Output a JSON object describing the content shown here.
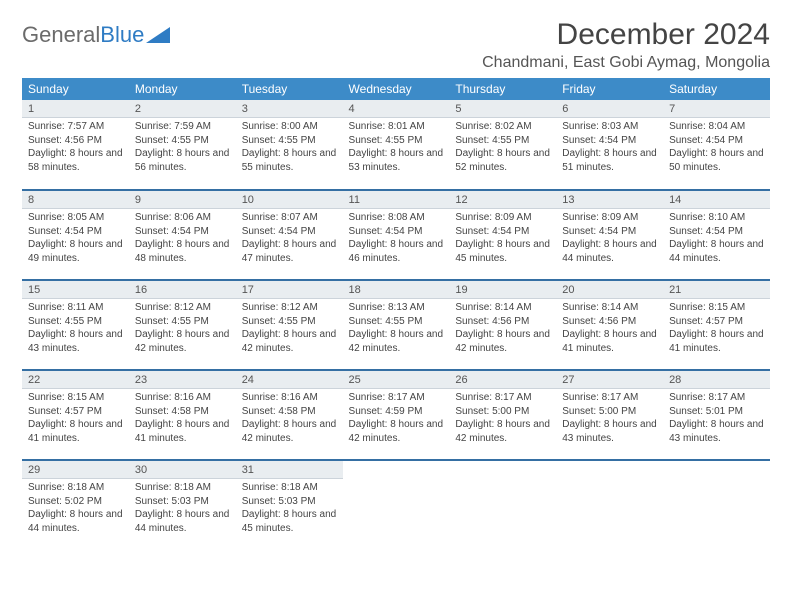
{
  "brand": {
    "part1": "General",
    "part2": "Blue"
  },
  "title": "December 2024",
  "location": "Chandmani, East Gobi Aymag, Mongolia",
  "colors": {
    "header_bg": "#3d8bc8",
    "header_text": "#ffffff",
    "daynum_bg": "#e9edf0",
    "week_sep": "#356fa3",
    "logo_gray": "#6b6b6b",
    "logo_blue": "#2f7cc4",
    "text": "#444444"
  },
  "font": {
    "title_size": 30,
    "location_size": 16,
    "th_size": 12,
    "daynum_size": 11,
    "info_size": 10
  },
  "dow": [
    "Sunday",
    "Monday",
    "Tuesday",
    "Wednesday",
    "Thursday",
    "Friday",
    "Saturday"
  ],
  "weeks": [
    [
      {
        "n": "1",
        "sr": "7:57 AM",
        "ss": "4:56 PM",
        "dl": "8 hours and 58 minutes."
      },
      {
        "n": "2",
        "sr": "7:59 AM",
        "ss": "4:55 PM",
        "dl": "8 hours and 56 minutes."
      },
      {
        "n": "3",
        "sr": "8:00 AM",
        "ss": "4:55 PM",
        "dl": "8 hours and 55 minutes."
      },
      {
        "n": "4",
        "sr": "8:01 AM",
        "ss": "4:55 PM",
        "dl": "8 hours and 53 minutes."
      },
      {
        "n": "5",
        "sr": "8:02 AM",
        "ss": "4:55 PM",
        "dl": "8 hours and 52 minutes."
      },
      {
        "n": "6",
        "sr": "8:03 AM",
        "ss": "4:54 PM",
        "dl": "8 hours and 51 minutes."
      },
      {
        "n": "7",
        "sr": "8:04 AM",
        "ss": "4:54 PM",
        "dl": "8 hours and 50 minutes."
      }
    ],
    [
      {
        "n": "8",
        "sr": "8:05 AM",
        "ss": "4:54 PM",
        "dl": "8 hours and 49 minutes."
      },
      {
        "n": "9",
        "sr": "8:06 AM",
        "ss": "4:54 PM",
        "dl": "8 hours and 48 minutes."
      },
      {
        "n": "10",
        "sr": "8:07 AM",
        "ss": "4:54 PM",
        "dl": "8 hours and 47 minutes."
      },
      {
        "n": "11",
        "sr": "8:08 AM",
        "ss": "4:54 PM",
        "dl": "8 hours and 46 minutes."
      },
      {
        "n": "12",
        "sr": "8:09 AM",
        "ss": "4:54 PM",
        "dl": "8 hours and 45 minutes."
      },
      {
        "n": "13",
        "sr": "8:09 AM",
        "ss": "4:54 PM",
        "dl": "8 hours and 44 minutes."
      },
      {
        "n": "14",
        "sr": "8:10 AM",
        "ss": "4:54 PM",
        "dl": "8 hours and 44 minutes."
      }
    ],
    [
      {
        "n": "15",
        "sr": "8:11 AM",
        "ss": "4:55 PM",
        "dl": "8 hours and 43 minutes."
      },
      {
        "n": "16",
        "sr": "8:12 AM",
        "ss": "4:55 PM",
        "dl": "8 hours and 42 minutes."
      },
      {
        "n": "17",
        "sr": "8:12 AM",
        "ss": "4:55 PM",
        "dl": "8 hours and 42 minutes."
      },
      {
        "n": "18",
        "sr": "8:13 AM",
        "ss": "4:55 PM",
        "dl": "8 hours and 42 minutes."
      },
      {
        "n": "19",
        "sr": "8:14 AM",
        "ss": "4:56 PM",
        "dl": "8 hours and 42 minutes."
      },
      {
        "n": "20",
        "sr": "8:14 AM",
        "ss": "4:56 PM",
        "dl": "8 hours and 41 minutes."
      },
      {
        "n": "21",
        "sr": "8:15 AM",
        "ss": "4:57 PM",
        "dl": "8 hours and 41 minutes."
      }
    ],
    [
      {
        "n": "22",
        "sr": "8:15 AM",
        "ss": "4:57 PM",
        "dl": "8 hours and 41 minutes."
      },
      {
        "n": "23",
        "sr": "8:16 AM",
        "ss": "4:58 PM",
        "dl": "8 hours and 41 minutes."
      },
      {
        "n": "24",
        "sr": "8:16 AM",
        "ss": "4:58 PM",
        "dl": "8 hours and 42 minutes."
      },
      {
        "n": "25",
        "sr": "8:17 AM",
        "ss": "4:59 PM",
        "dl": "8 hours and 42 minutes."
      },
      {
        "n": "26",
        "sr": "8:17 AM",
        "ss": "5:00 PM",
        "dl": "8 hours and 42 minutes."
      },
      {
        "n": "27",
        "sr": "8:17 AM",
        "ss": "5:00 PM",
        "dl": "8 hours and 43 minutes."
      },
      {
        "n": "28",
        "sr": "8:17 AM",
        "ss": "5:01 PM",
        "dl": "8 hours and 43 minutes."
      }
    ],
    [
      {
        "n": "29",
        "sr": "8:18 AM",
        "ss": "5:02 PM",
        "dl": "8 hours and 44 minutes."
      },
      {
        "n": "30",
        "sr": "8:18 AM",
        "ss": "5:03 PM",
        "dl": "8 hours and 44 minutes."
      },
      {
        "n": "31",
        "sr": "8:18 AM",
        "ss": "5:03 PM",
        "dl": "8 hours and 45 minutes."
      },
      null,
      null,
      null,
      null
    ]
  ],
  "labels": {
    "sunrise": "Sunrise:",
    "sunset": "Sunset:",
    "daylight": "Daylight:"
  }
}
